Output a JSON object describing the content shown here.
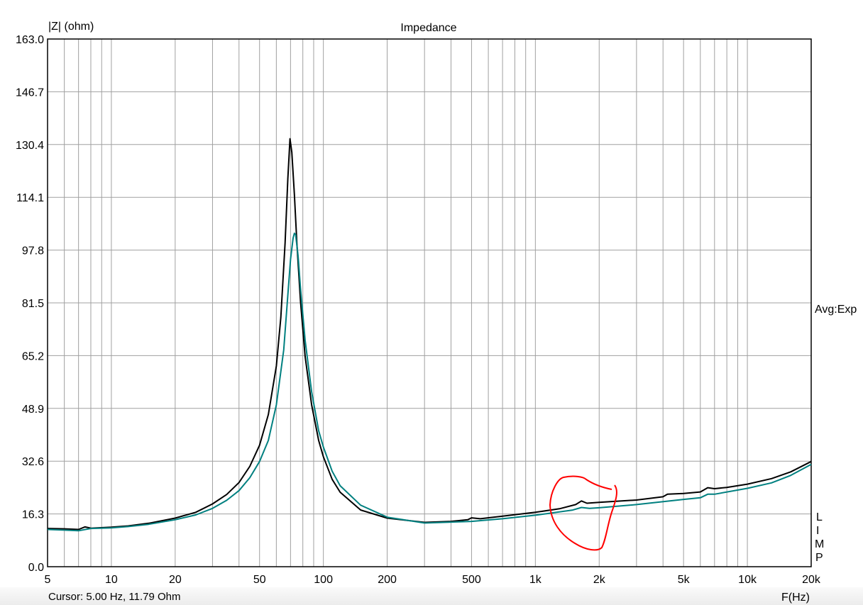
{
  "chart_data": {
    "type": "line",
    "title": "Impedance",
    "ylabel": "|Z| (ohm)",
    "xlabel": "F(Hz)",
    "x_scale": "log",
    "xlim": [
      5,
      20000
    ],
    "ylim": [
      0,
      163
    ],
    "grid": true,
    "y_ticks": [
      "0.0",
      "16.3",
      "32.6",
      "48.9",
      "65.2",
      "81.5",
      "97.8",
      "114.1",
      "130.4",
      "146.7",
      "163.0"
    ],
    "x_ticks": [
      {
        "v": 5,
        "label": "5"
      },
      {
        "v": 10,
        "label": "10"
      },
      {
        "v": 20,
        "label": "20"
      },
      {
        "v": 50,
        "label": "50"
      },
      {
        "v": 100,
        "label": "100"
      },
      {
        "v": 200,
        "label": "200"
      },
      {
        "v": 500,
        "label": "500"
      },
      {
        "v": 1000,
        "label": "1k"
      },
      {
        "v": 2000,
        "label": "2k"
      },
      {
        "v": 5000,
        "label": "5k"
      },
      {
        "v": 10000,
        "label": "10k"
      },
      {
        "v": 20000,
        "label": "20k"
      }
    ],
    "series": [
      {
        "color": "#000000",
        "points": [
          [
            5,
            11.8
          ],
          [
            6,
            11.7
          ],
          [
            7,
            11.5
          ],
          [
            7.5,
            12.3
          ],
          [
            8,
            11.9
          ],
          [
            10,
            12.2
          ],
          [
            12,
            12.6
          ],
          [
            15,
            13.4
          ],
          [
            20,
            15
          ],
          [
            25,
            16.8
          ],
          [
            30,
            19.4
          ],
          [
            35,
            22.3
          ],
          [
            40,
            26
          ],
          [
            45,
            31
          ],
          [
            50,
            37.5
          ],
          [
            55,
            47
          ],
          [
            60,
            62
          ],
          [
            63,
            77
          ],
          [
            66,
            100
          ],
          [
            68,
            120
          ],
          [
            69.6,
            132.2
          ],
          [
            71,
            128
          ],
          [
            73,
            115
          ],
          [
            75,
            100
          ],
          [
            78,
            82
          ],
          [
            82,
            65
          ],
          [
            88,
            50
          ],
          [
            95,
            39
          ],
          [
            100,
            34
          ],
          [
            110,
            27
          ],
          [
            120,
            23
          ],
          [
            150,
            17.5
          ],
          [
            200,
            15
          ],
          [
            300,
            13.7
          ],
          [
            400,
            14
          ],
          [
            480,
            14.5
          ],
          [
            500,
            15.1
          ],
          [
            550,
            14.8
          ],
          [
            700,
            15.6
          ],
          [
            1000,
            16.8
          ],
          [
            1300,
            17.9
          ],
          [
            1550,
            19.2
          ],
          [
            1650,
            20.3
          ],
          [
            1750,
            19.6
          ],
          [
            2000,
            19.9
          ],
          [
            3000,
            20.6
          ],
          [
            4000,
            21.6
          ],
          [
            4200,
            22.4
          ],
          [
            5000,
            22.6
          ],
          [
            6000,
            23.1
          ],
          [
            6500,
            24.4
          ],
          [
            7000,
            24.1
          ],
          [
            8000,
            24.5
          ],
          [
            10000,
            25.5
          ],
          [
            13000,
            27.2
          ],
          [
            16000,
            29.3
          ],
          [
            20000,
            32.5
          ]
        ]
      },
      {
        "color": "#008080",
        "points": [
          [
            5,
            11.5
          ],
          [
            6,
            11.3
          ],
          [
            7,
            11.1
          ],
          [
            8,
            11.8
          ],
          [
            10,
            12
          ],
          [
            12,
            12.4
          ],
          [
            15,
            13.1
          ],
          [
            20,
            14.5
          ],
          [
            25,
            16
          ],
          [
            30,
            18
          ],
          [
            35,
            20.5
          ],
          [
            40,
            23.5
          ],
          [
            45,
            27.5
          ],
          [
            50,
            32.5
          ],
          [
            55,
            39
          ],
          [
            60,
            50
          ],
          [
            65,
            67
          ],
          [
            68,
            84
          ],
          [
            70,
            95
          ],
          [
            72,
            101.5
          ],
          [
            73,
            103
          ],
          [
            74,
            102.5
          ],
          [
            76,
            96
          ],
          [
            78,
            86
          ],
          [
            82,
            70
          ],
          [
            88,
            54
          ],
          [
            95,
            42
          ],
          [
            100,
            37
          ],
          [
            110,
            29.5
          ],
          [
            120,
            25
          ],
          [
            150,
            19
          ],
          [
            200,
            15.3
          ],
          [
            300,
            13.5
          ],
          [
            500,
            14
          ],
          [
            700,
            14.8
          ],
          [
            1000,
            15.9
          ],
          [
            1500,
            17.5
          ],
          [
            1650,
            18.3
          ],
          [
            1800,
            18
          ],
          [
            2000,
            18.2
          ],
          [
            3000,
            19.2
          ],
          [
            5000,
            20.8
          ],
          [
            6000,
            21.3
          ],
          [
            6500,
            22.4
          ],
          [
            7000,
            22.4
          ],
          [
            10000,
            24.2
          ],
          [
            13000,
            25.9
          ],
          [
            16000,
            28.2
          ],
          [
            20000,
            31.6
          ]
        ]
      }
    ],
    "annotations": {
      "right_label": "Avg:Exp",
      "right_stack": [
        "L",
        "I",
        "M",
        "P"
      ],
      "highlight_color": "#ff0000"
    }
  },
  "status": {
    "cursor": "Cursor: 5.00 Hz, 11.79 Ohm"
  }
}
